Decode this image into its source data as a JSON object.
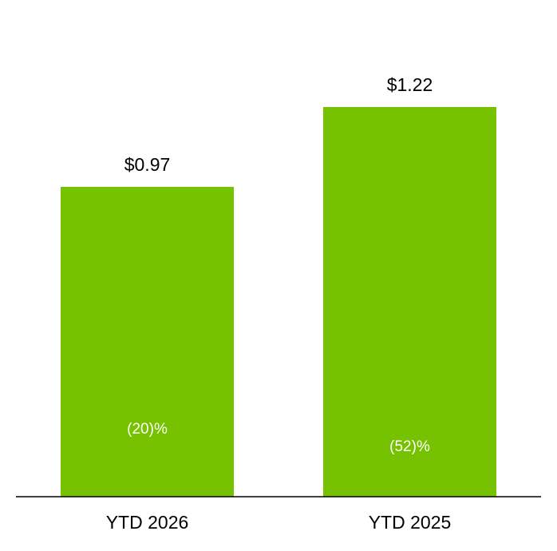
{
  "chart_data": {
    "type": "bar",
    "categories": [
      "YTD 2026",
      "YTD 2025"
    ],
    "values": [
      0.97,
      1.22
    ],
    "value_labels": [
      "$0.97",
      "$1.22"
    ],
    "annotations": [
      "(20)%",
      "(52)%"
    ],
    "color": "#76c200",
    "ylim": [
      0,
      1.5
    ]
  }
}
